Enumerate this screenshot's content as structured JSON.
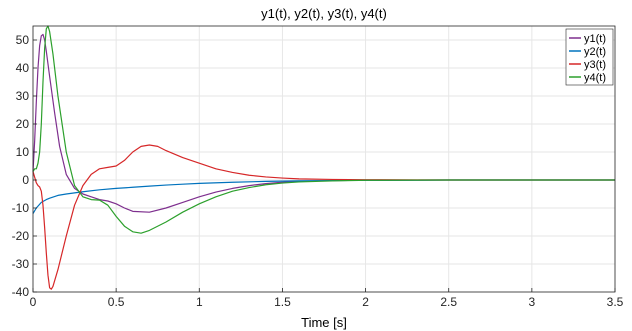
{
  "chart_data": {
    "type": "line",
    "title": "y1(t), y2(t), y3(t), y4(t)",
    "xlabel": "Time [s]",
    "ylabel": "",
    "xlim": [
      0,
      3.5
    ],
    "ylim": [
      -40,
      55
    ],
    "xticks": [
      0,
      0.5,
      1,
      1.5,
      2,
      2.5,
      3,
      3.5
    ],
    "xtick_labels": [
      "0",
      "0.5",
      "1",
      "1.5",
      "2",
      "2.5",
      "3",
      "3.5"
    ],
    "yticks": [
      -40,
      -30,
      -20,
      -10,
      0,
      10,
      20,
      30,
      40,
      50
    ],
    "ytick_labels": [
      "-40",
      "-30",
      "-20",
      "-10",
      "0",
      "10",
      "20",
      "30",
      "40",
      "50"
    ],
    "grid": true,
    "legend_position": "top-right",
    "series": [
      {
        "name": "y1(t)",
        "color": "#7e2f8e",
        "points": [
          [
            0,
            3
          ],
          [
            0.01,
            14
          ],
          [
            0.02,
            28
          ],
          [
            0.03,
            40
          ],
          [
            0.04,
            48
          ],
          [
            0.05,
            51.5
          ],
          [
            0.06,
            52
          ],
          [
            0.07,
            50
          ],
          [
            0.08,
            46
          ],
          [
            0.1,
            37
          ],
          [
            0.13,
            24
          ],
          [
            0.16,
            12
          ],
          [
            0.2,
            2
          ],
          [
            0.25,
            -3
          ],
          [
            0.3,
            -5
          ],
          [
            0.35,
            -6
          ],
          [
            0.4,
            -7
          ],
          [
            0.45,
            -7.5
          ],
          [
            0.5,
            -8.5
          ],
          [
            0.55,
            -10
          ],
          [
            0.6,
            -11.2
          ],
          [
            0.7,
            -11.5
          ],
          [
            0.8,
            -10
          ],
          [
            0.9,
            -8
          ],
          [
            1.0,
            -6
          ],
          [
            1.1,
            -4.3
          ],
          [
            1.2,
            -3
          ],
          [
            1.3,
            -2
          ],
          [
            1.4,
            -1.3
          ],
          [
            1.5,
            -0.8
          ],
          [
            1.6,
            -0.5
          ],
          [
            1.8,
            -0.2
          ],
          [
            2.0,
            -0.1
          ],
          [
            2.5,
            0
          ],
          [
            3.0,
            0
          ],
          [
            3.5,
            0
          ]
        ]
      },
      {
        "name": "y2(t)",
        "color": "#0072bd",
        "points": [
          [
            0,
            -12
          ],
          [
            0.02,
            -10
          ],
          [
            0.05,
            -8
          ],
          [
            0.08,
            -7
          ],
          [
            0.1,
            -6.5
          ],
          [
            0.15,
            -5.5
          ],
          [
            0.2,
            -5
          ],
          [
            0.3,
            -4.2
          ],
          [
            0.4,
            -3.5
          ],
          [
            0.5,
            -3
          ],
          [
            0.6,
            -2.6
          ],
          [
            0.7,
            -2.2
          ],
          [
            0.8,
            -1.8
          ],
          [
            0.9,
            -1.5
          ],
          [
            1.0,
            -1.2
          ],
          [
            1.2,
            -0.8
          ],
          [
            1.4,
            -0.5
          ],
          [
            1.6,
            -0.3
          ],
          [
            1.8,
            -0.2
          ],
          [
            2.0,
            -0.1
          ],
          [
            2.5,
            0
          ],
          [
            3.0,
            0
          ],
          [
            3.5,
            0
          ]
        ]
      },
      {
        "name": "y3(t)",
        "color": "#d62728",
        "points": [
          [
            0,
            3
          ],
          [
            0.01,
            1
          ],
          [
            0.02,
            -1
          ],
          [
            0.03,
            -2
          ],
          [
            0.04,
            -2.5
          ],
          [
            0.05,
            -4
          ],
          [
            0.06,
            -9
          ],
          [
            0.07,
            -17
          ],
          [
            0.08,
            -26
          ],
          [
            0.09,
            -34
          ],
          [
            0.1,
            -38.5
          ],
          [
            0.11,
            -39
          ],
          [
            0.12,
            -38
          ],
          [
            0.15,
            -32
          ],
          [
            0.2,
            -20
          ],
          [
            0.25,
            -9
          ],
          [
            0.3,
            -2
          ],
          [
            0.35,
            2
          ],
          [
            0.4,
            4
          ],
          [
            0.45,
            4.5
          ],
          [
            0.5,
            5
          ],
          [
            0.55,
            7
          ],
          [
            0.6,
            10
          ],
          [
            0.65,
            12
          ],
          [
            0.7,
            12.5
          ],
          [
            0.75,
            12
          ],
          [
            0.8,
            10.5
          ],
          [
            0.9,
            8
          ],
          [
            1.0,
            6
          ],
          [
            1.1,
            4
          ],
          [
            1.2,
            2.7
          ],
          [
            1.3,
            1.7
          ],
          [
            1.4,
            1.1
          ],
          [
            1.5,
            0.7
          ],
          [
            1.6,
            0.4
          ],
          [
            1.8,
            0.2
          ],
          [
            2.0,
            0.1
          ],
          [
            2.5,
            0
          ],
          [
            3.0,
            0
          ],
          [
            3.5,
            0
          ]
        ]
      },
      {
        "name": "y4(t)",
        "color": "#2ca02c",
        "points": [
          [
            0,
            3
          ],
          [
            0.01,
            4
          ],
          [
            0.02,
            4
          ],
          [
            0.03,
            6
          ],
          [
            0.04,
            10
          ],
          [
            0.05,
            20
          ],
          [
            0.06,
            35
          ],
          [
            0.07,
            47
          ],
          [
            0.08,
            54
          ],
          [
            0.09,
            55
          ],
          [
            0.1,
            53
          ],
          [
            0.12,
            45
          ],
          [
            0.15,
            30
          ],
          [
            0.2,
            10
          ],
          [
            0.25,
            -2
          ],
          [
            0.3,
            -6
          ],
          [
            0.35,
            -7
          ],
          [
            0.4,
            -7.2
          ],
          [
            0.45,
            -9
          ],
          [
            0.5,
            -13
          ],
          [
            0.55,
            -16.5
          ],
          [
            0.6,
            -18.5
          ],
          [
            0.65,
            -19
          ],
          [
            0.7,
            -18
          ],
          [
            0.8,
            -15
          ],
          [
            0.9,
            -11.5
          ],
          [
            1.0,
            -8.5
          ],
          [
            1.1,
            -6
          ],
          [
            1.2,
            -4
          ],
          [
            1.3,
            -2.7
          ],
          [
            1.4,
            -1.7
          ],
          [
            1.5,
            -1.1
          ],
          [
            1.6,
            -0.7
          ],
          [
            1.8,
            -0.3
          ],
          [
            2.0,
            -0.1
          ],
          [
            2.5,
            0
          ],
          [
            3.0,
            0
          ],
          [
            3.5,
            0
          ]
        ]
      }
    ]
  }
}
